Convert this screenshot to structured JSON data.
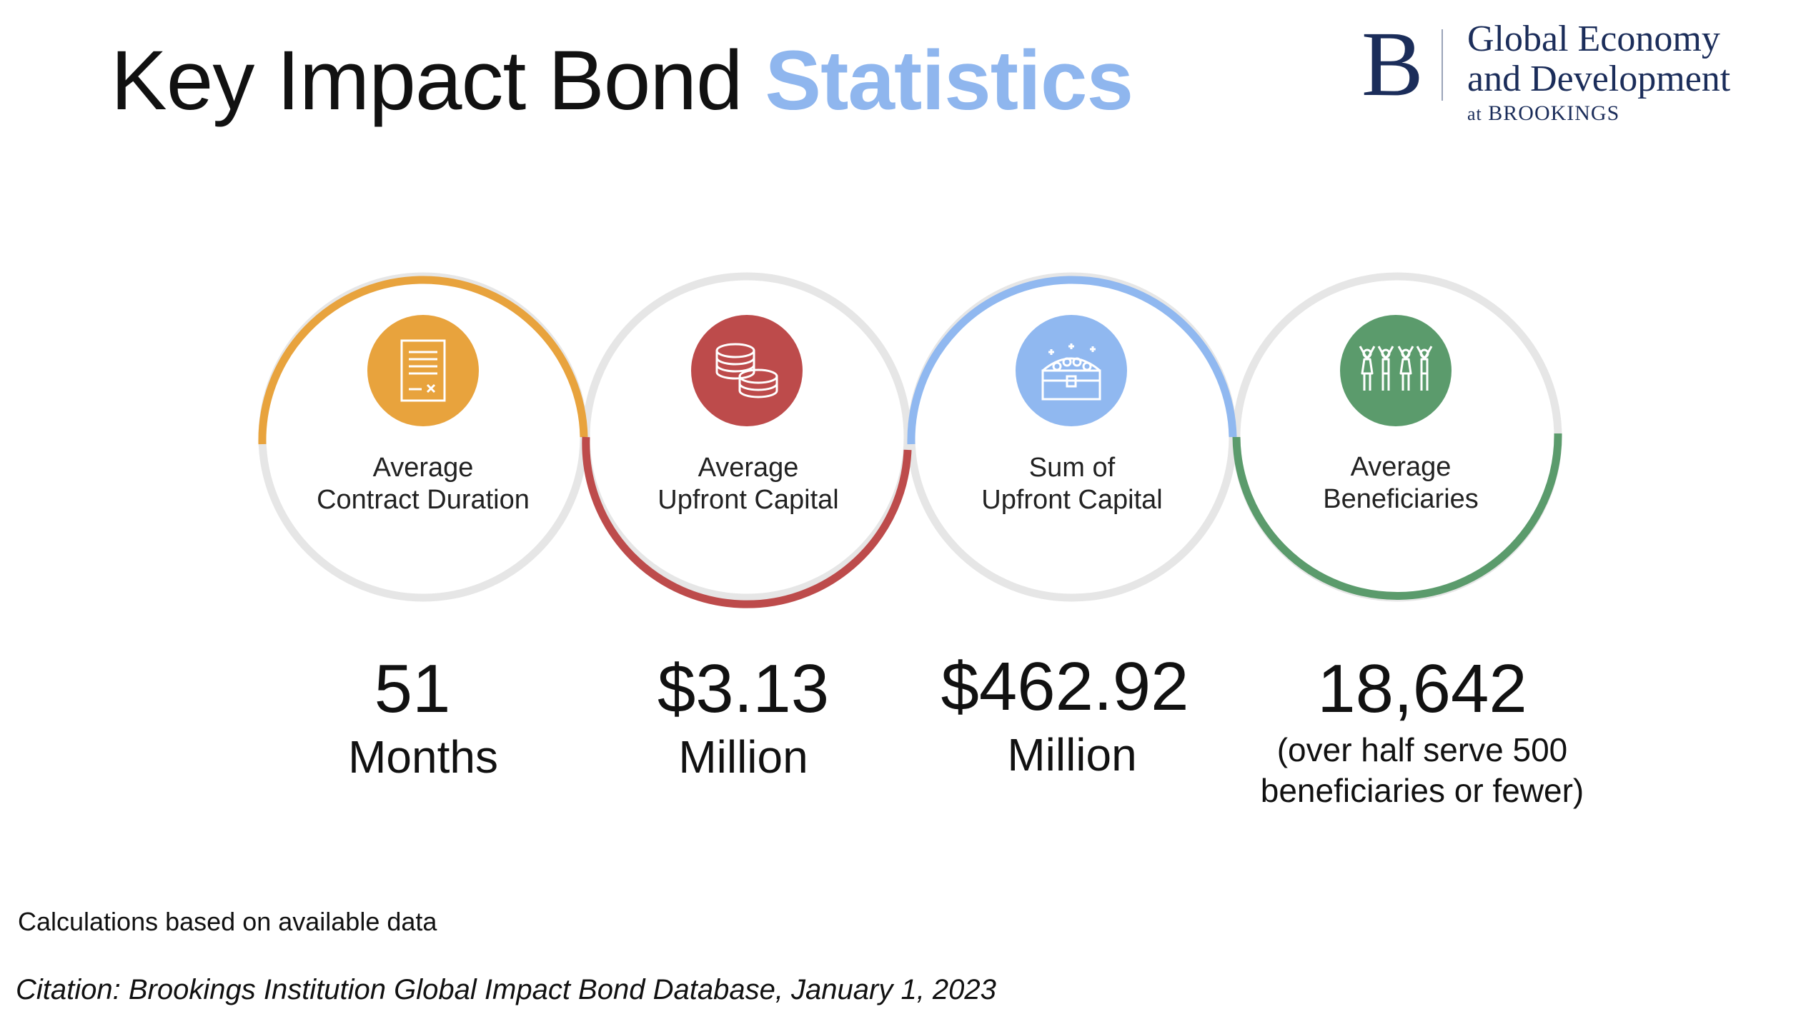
{
  "title": {
    "main": "Key Impact Bond",
    "accent": "Statistics"
  },
  "logo": {
    "letter": "B",
    "line1": "Global Economy",
    "line2": "and Development",
    "line3_at": "at",
    "line3_org": "BROOKINGS"
  },
  "colors": {
    "orange": "#e8a33d",
    "red": "#bd4b4b",
    "blue": "#90b8f0",
    "green": "#5b9b6c",
    "ring_gray": "#e6e6e6",
    "title_accent": "#8fb6ee"
  },
  "stats": [
    {
      "icon": "contract-document-icon",
      "label_line1": "Average",
      "label_line2": "Contract Duration",
      "value": "51",
      "unit": "Months"
    },
    {
      "icon": "coin-stacks-icon",
      "label_line1": "Average",
      "label_line2": "Upfront Capital",
      "value": "$3.13",
      "unit": "Million"
    },
    {
      "icon": "treasure-chest-icon",
      "label_line1": "Sum of",
      "label_line2": "Upfront Capital",
      "value": "$462.92",
      "unit": "Million"
    },
    {
      "icon": "people-celebrating-icon",
      "label_line1": "Average",
      "label_line2": "Beneficiaries",
      "value": "18,642",
      "note_line1": "(over half serve 500",
      "note_line2": "beneficiaries or fewer)"
    }
  ],
  "footnote": "Calculations based on available data",
  "citation": "Citation: Brookings Institution Global Impact Bond Database, January 1, 2023"
}
